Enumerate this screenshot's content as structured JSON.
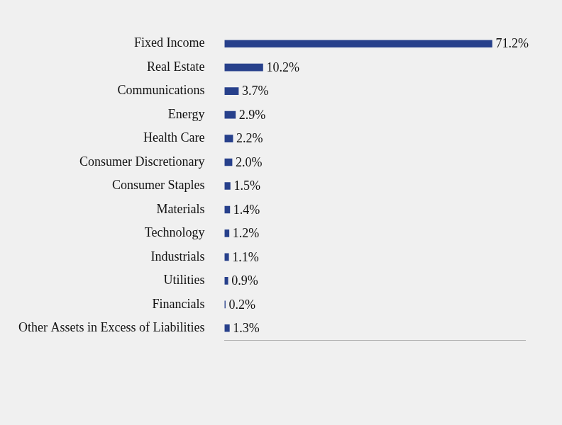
{
  "chart_data": {
    "type": "bar",
    "orientation": "horizontal",
    "categories": [
      "Fixed Income",
      "Real Estate",
      "Communications",
      "Energy",
      "Health Care",
      "Consumer Discretionary",
      "Consumer Staples",
      "Materials",
      "Technology",
      "Industrials",
      "Utilities",
      "Financials",
      "Other Assets in Excess of Liabilities"
    ],
    "values": [
      71.2,
      10.2,
      3.7,
      2.9,
      2.2,
      2.0,
      1.5,
      1.4,
      1.2,
      1.1,
      0.9,
      0.2,
      1.3
    ],
    "value_labels": [
      "71.2%",
      "10.2%",
      "3.7%",
      "2.9%",
      "2.2%",
      "2.0%",
      "1.5%",
      "1.4%",
      "1.2%",
      "1.1%",
      "0.9%",
      "0.2%",
      "1.3%"
    ],
    "color": "#27408b",
    "xlim": [
      0,
      80
    ],
    "grid": false,
    "data_labels": true,
    "tick_labels": "y"
  }
}
